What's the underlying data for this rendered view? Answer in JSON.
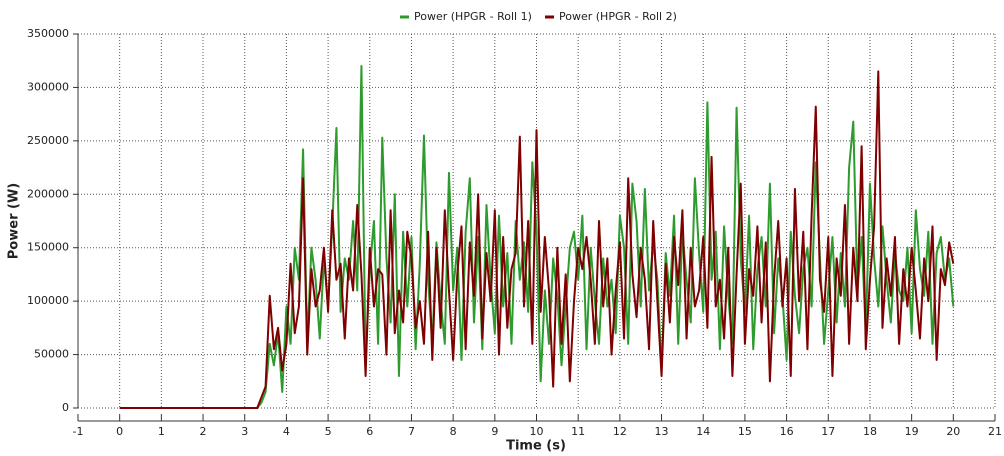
{
  "chart_data": {
    "type": "line",
    "xlabel": "Time (s)",
    "ylabel": "Power (W)",
    "xlim": [
      -1,
      21
    ],
    "xticks": [
      -1,
      0,
      1,
      2,
      3,
      4,
      5,
      6,
      7,
      8,
      9,
      10,
      11,
      12,
      13,
      14,
      15,
      16,
      17,
      18,
      19,
      20,
      21
    ],
    "ylim": [
      0,
      350000
    ],
    "yticks": [
      0,
      50000,
      100000,
      150000,
      200000,
      250000,
      300000,
      350000
    ],
    "grid": true,
    "legend": "top",
    "x": [
      0,
      3.3,
      3.4,
      3.5,
      3.6,
      3.7,
      3.8,
      3.9,
      4.0,
      4.1,
      4.2,
      4.3,
      4.4,
      4.5,
      4.6,
      4.7,
      4.8,
      4.9,
      5.0,
      5.1,
      5.2,
      5.3,
      5.4,
      5.5,
      5.6,
      5.7,
      5.8,
      5.9,
      6.0,
      6.1,
      6.2,
      6.3,
      6.4,
      6.5,
      6.6,
      6.7,
      6.8,
      6.9,
      7.0,
      7.1,
      7.2,
      7.3,
      7.4,
      7.5,
      7.6,
      7.7,
      7.8,
      7.9,
      8.0,
      8.1,
      8.2,
      8.3,
      8.4,
      8.5,
      8.6,
      8.7,
      8.8,
      8.9,
      9.0,
      9.1,
      9.2,
      9.3,
      9.4,
      9.5,
      9.6,
      9.7,
      9.8,
      9.9,
      10.0,
      10.1,
      10.2,
      10.3,
      10.4,
      10.5,
      10.6,
      10.7,
      10.8,
      10.9,
      11.0,
      11.1,
      11.2,
      11.3,
      11.4,
      11.5,
      11.6,
      11.7,
      11.8,
      11.9,
      12.0,
      12.1,
      12.2,
      12.3,
      12.4,
      12.5,
      12.6,
      12.7,
      12.8,
      12.9,
      13.0,
      13.1,
      13.2,
      13.3,
      13.4,
      13.5,
      13.6,
      13.7,
      13.8,
      13.9,
      14.0,
      14.1,
      14.2,
      14.3,
      14.4,
      14.5,
      14.6,
      14.7,
      14.8,
      14.9,
      15.0,
      15.1,
      15.2,
      15.3,
      15.4,
      15.5,
      15.6,
      15.7,
      15.8,
      15.9,
      16.0,
      16.1,
      16.2,
      16.3,
      16.4,
      16.5,
      16.6,
      16.7,
      16.8,
      16.9,
      17.0,
      17.1,
      17.2,
      17.3,
      17.4,
      17.5,
      17.6,
      17.7,
      17.8,
      17.9,
      18.0,
      18.1,
      18.2,
      18.3,
      18.4,
      18.5,
      18.6,
      18.7,
      18.8,
      18.9,
      19.0,
      19.1,
      19.2,
      19.3,
      19.4,
      19.5,
      19.6,
      19.7,
      19.8,
      19.9,
      20.0
    ],
    "series": [
      {
        "name": "Power (HPGR - Roll 1)",
        "color": "#2e9b2e",
        "values": [
          0,
          0,
          5000,
          15000,
          60000,
          40000,
          70000,
          15000,
          95000,
          60000,
          150000,
          120000,
          242000,
          60000,
          150000,
          120000,
          65000,
          140000,
          95000,
          170000,
          262000,
          90000,
          140000,
          120000,
          175000,
          110000,
          320000,
          40000,
          130000,
          175000,
          60000,
          253000,
          140000,
          80000,
          200000,
          30000,
          165000,
          95000,
          160000,
          55000,
          135000,
          255000,
          120000,
          60000,
          155000,
          100000,
          60000,
          220000,
          110000,
          150000,
          45000,
          165000,
          215000,
          80000,
          160000,
          55000,
          190000,
          120000,
          70000,
          180000,
          95000,
          145000,
          60000,
          175000,
          120000,
          155000,
          90000,
          230000,
          165000,
          25000,
          110000,
          60000,
          140000,
          105000,
          40000,
          95000,
          150000,
          165000,
          120000,
          180000,
          55000,
          150000,
          100000,
          60000,
          140000,
          95000,
          120000,
          70000,
          180000,
          150000,
          60000,
          210000,
          175000,
          95000,
          205000,
          110000,
          155000,
          120000,
          35000,
          145000,
          105000,
          180000,
          60000,
          165000,
          120000,
          80000,
          215000,
          145000,
          90000,
          286000,
          120000,
          165000,
          55000,
          170000,
          105000,
          60000,
          281000,
          140000,
          90000,
          180000,
          55000,
          130000,
          160000,
          95000,
          210000,
          70000,
          140000,
          105000,
          45000,
          165000,
          105000,
          70000,
          130000,
          150000,
          95000,
          230000,
          140000,
          60000,
          110000,
          160000,
          80000,
          145000,
          95000,
          225000,
          268000,
          110000,
          160000,
          70000,
          210000,
          140000,
          95000,
          170000,
          120000,
          80000,
          145000,
          110000,
          100000,
          150000,
          70000,
          185000,
          130000,
          105000,
          165000,
          60000,
          145000,
          160000,
          120000,
          140000,
          95000
        ]
      },
      {
        "name": "Power (HPGR - Roll 2)",
        "color": "#7f0000",
        "values": [
          0,
          0,
          10000,
          20000,
          105000,
          55000,
          75000,
          35000,
          60000,
          135000,
          70000,
          95000,
          215000,
          50000,
          130000,
          95000,
          110000,
          150000,
          90000,
          185000,
          120000,
          135000,
          65000,
          140000,
          110000,
          190000,
          125000,
          30000,
          150000,
          95000,
          130000,
          125000,
          50000,
          185000,
          70000,
          110000,
          80000,
          165000,
          140000,
          75000,
          100000,
          60000,
          165000,
          45000,
          150000,
          75000,
          185000,
          110000,
          45000,
          125000,
          170000,
          55000,
          155000,
          105000,
          200000,
          65000,
          145000,
          100000,
          185000,
          50000,
          160000,
          75000,
          130000,
          145000,
          254000,
          95000,
          175000,
          60000,
          260000,
          90000,
          160000,
          110000,
          20000,
          150000,
          60000,
          125000,
          25000,
          100000,
          150000,
          130000,
          160000,
          120000,
          60000,
          175000,
          95000,
          140000,
          50000,
          110000,
          155000,
          65000,
          215000,
          125000,
          85000,
          150000,
          120000,
          55000,
          175000,
          100000,
          30000,
          135000,
          80000,
          160000,
          115000,
          185000,
          65000,
          150000,
          95000,
          110000,
          160000,
          75000,
          235000,
          95000,
          120000,
          65000,
          150000,
          30000,
          125000,
          210000,
          60000,
          130000,
          105000,
          170000,
          80000,
          155000,
          25000,
          120000,
          175000,
          95000,
          140000,
          30000,
          205000,
          100000,
          165000,
          55000,
          180000,
          282000,
          120000,
          90000,
          160000,
          30000,
          140000,
          105000,
          190000,
          60000,
          150000,
          100000,
          245000,
          55000,
          120000,
          170000,
          315000,
          75000,
          140000,
          105000,
          160000,
          60000,
          130000,
          95000,
          150000,
          110000,
          65000,
          140000,
          100000,
          170000,
          45000,
          130000,
          115000,
          155000,
          135000
        ]
      }
    ]
  }
}
